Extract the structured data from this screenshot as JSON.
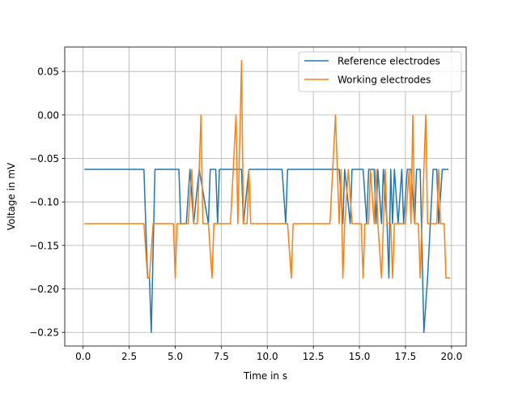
{
  "chart_data": {
    "type": "line",
    "title": "",
    "xlabel": "Time in s",
    "ylabel": "Voltage in mV",
    "xlim": [
      -0.9975,
      20.7975
    ],
    "ylim": [
      -0.265625,
      0.078125
    ],
    "grid": true,
    "legend": {
      "position": "top-right"
    },
    "x_ticks": [
      0.0,
      2.5,
      5.0,
      7.5,
      10.0,
      12.5,
      15.0,
      17.5,
      20.0
    ],
    "x_tick_labels": [
      "0.0",
      "2.5",
      "5.0",
      "7.5",
      "10.0",
      "12.5",
      "15.0",
      "17.5",
      "20.0"
    ],
    "y_ticks": [
      -0.25,
      -0.2,
      -0.15,
      -0.1,
      -0.05,
      0.0,
      0.05
    ],
    "y_tick_labels": [
      "−0.25",
      "−0.20",
      "−0.15",
      "−0.10",
      "−0.05",
      "0.00",
      "0.05"
    ],
    "series": [
      {
        "name": "Reference electrodes",
        "color": "#1f77b4",
        "points": [
          [
            0.1,
            -0.0625
          ],
          [
            3.3,
            -0.0625
          ],
          [
            3.5,
            -0.1875
          ],
          [
            3.6,
            -0.1875
          ],
          [
            3.7,
            -0.25
          ],
          [
            3.9,
            -0.0625
          ],
          [
            5.2,
            -0.0625
          ],
          [
            5.3,
            -0.125
          ],
          [
            5.6,
            -0.125
          ],
          [
            5.8,
            -0.0625
          ],
          [
            6.0,
            -0.125
          ],
          [
            6.3,
            -0.0625
          ],
          [
            6.8,
            -0.125
          ],
          [
            6.9,
            -0.0625
          ],
          [
            7.2,
            -0.0625
          ],
          [
            7.3,
            -0.125
          ],
          [
            7.4,
            -0.0625
          ],
          [
            8.6,
            -0.0625
          ],
          [
            8.7,
            -0.125
          ],
          [
            9.0,
            -0.0625
          ],
          [
            10.8,
            -0.0625
          ],
          [
            11.0,
            -0.125
          ],
          [
            11.1,
            -0.0625
          ],
          [
            13.5,
            -0.0625
          ],
          [
            13.9,
            -0.0625
          ],
          [
            14.1,
            -0.125
          ],
          [
            14.2,
            -0.0625
          ],
          [
            14.5,
            -0.125
          ],
          [
            14.6,
            -0.0625
          ],
          [
            15.2,
            -0.0625
          ],
          [
            15.4,
            -0.125
          ],
          [
            15.5,
            -0.0625
          ],
          [
            15.8,
            -0.0625
          ],
          [
            15.9,
            -0.125
          ],
          [
            16.0,
            -0.0625
          ],
          [
            16.2,
            -0.125
          ],
          [
            16.3,
            -0.0625
          ],
          [
            16.5,
            -0.125
          ],
          [
            16.6,
            -0.1875
          ],
          [
            16.7,
            -0.0625
          ],
          [
            16.8,
            -0.125
          ],
          [
            16.9,
            -0.0625
          ],
          [
            17.1,
            -0.125
          ],
          [
            17.3,
            -0.0625
          ],
          [
            17.4,
            -0.125
          ],
          [
            17.6,
            -0.0625
          ],
          [
            17.8,
            -0.0625
          ],
          [
            18.0,
            -0.125
          ],
          [
            18.1,
            -0.0625
          ],
          [
            18.3,
            -0.0625
          ],
          [
            18.5,
            -0.25
          ],
          [
            18.7,
            -0.1875
          ],
          [
            19.0,
            -0.0625
          ],
          [
            19.2,
            -0.0625
          ],
          [
            19.3,
            -0.125
          ],
          [
            19.5,
            -0.0625
          ],
          [
            19.8,
            -0.0625
          ]
        ]
      },
      {
        "name": "Working electrodes",
        "color": "#ff7f0e",
        "points": [
          [
            0.1,
            -0.125
          ],
          [
            3.3,
            -0.125
          ],
          [
            3.5,
            -0.1875
          ],
          [
            3.6,
            -0.1875
          ],
          [
            3.8,
            -0.125
          ],
          [
            4.9,
            -0.125
          ],
          [
            5.0,
            -0.1875
          ],
          [
            5.1,
            -0.125
          ],
          [
            5.7,
            -0.125
          ],
          [
            5.9,
            -0.0625
          ],
          [
            6.0,
            -0.125
          ],
          [
            6.2,
            -0.125
          ],
          [
            6.4,
            0.0
          ],
          [
            6.5,
            -0.125
          ],
          [
            6.8,
            -0.125
          ],
          [
            7.0,
            -0.1875
          ],
          [
            7.1,
            -0.125
          ],
          [
            8.0,
            -0.125
          ],
          [
            8.3,
            0.0
          ],
          [
            8.4,
            -0.125
          ],
          [
            8.6,
            0.0625
          ],
          [
            8.7,
            -0.125
          ],
          [
            8.9,
            -0.125
          ],
          [
            9.0,
            -0.0625
          ],
          [
            9.1,
            -0.125
          ],
          [
            11.1,
            -0.125
          ],
          [
            11.3,
            -0.1875
          ],
          [
            11.4,
            -0.125
          ],
          [
            13.4,
            -0.125
          ],
          [
            13.7,
            0.0
          ],
          [
            13.9,
            -0.125
          ],
          [
            14.0,
            -0.0625
          ],
          [
            14.1,
            -0.1875
          ],
          [
            14.2,
            -0.125
          ],
          [
            14.4,
            -0.0625
          ],
          [
            14.6,
            -0.125
          ],
          [
            15.1,
            -0.125
          ],
          [
            15.2,
            -0.1875
          ],
          [
            15.3,
            -0.125
          ],
          [
            15.5,
            -0.125
          ],
          [
            15.6,
            -0.0625
          ],
          [
            15.8,
            -0.125
          ],
          [
            15.9,
            -0.0625
          ],
          [
            16.0,
            -0.125
          ],
          [
            16.2,
            -0.1875
          ],
          [
            16.3,
            -0.125
          ],
          [
            16.4,
            -0.0625
          ],
          [
            16.5,
            -0.125
          ],
          [
            16.7,
            -0.125
          ],
          [
            16.8,
            -0.1875
          ],
          [
            16.9,
            -0.125
          ],
          [
            17.3,
            -0.125
          ],
          [
            17.5,
            -0.125
          ],
          [
            17.7,
            -0.0625
          ],
          [
            17.8,
            -0.125
          ],
          [
            17.9,
            0.0
          ],
          [
            18.0,
            -0.125
          ],
          [
            18.2,
            -0.125
          ],
          [
            18.3,
            -0.1875
          ],
          [
            18.5,
            -0.0625
          ],
          [
            18.6,
            0.0
          ],
          [
            18.7,
            -0.125
          ],
          [
            19.2,
            -0.125
          ],
          [
            19.3,
            -0.0625
          ],
          [
            19.4,
            -0.125
          ],
          [
            19.6,
            -0.125
          ],
          [
            19.7,
            -0.1875
          ],
          [
            19.9,
            -0.1875
          ]
        ]
      }
    ]
  }
}
